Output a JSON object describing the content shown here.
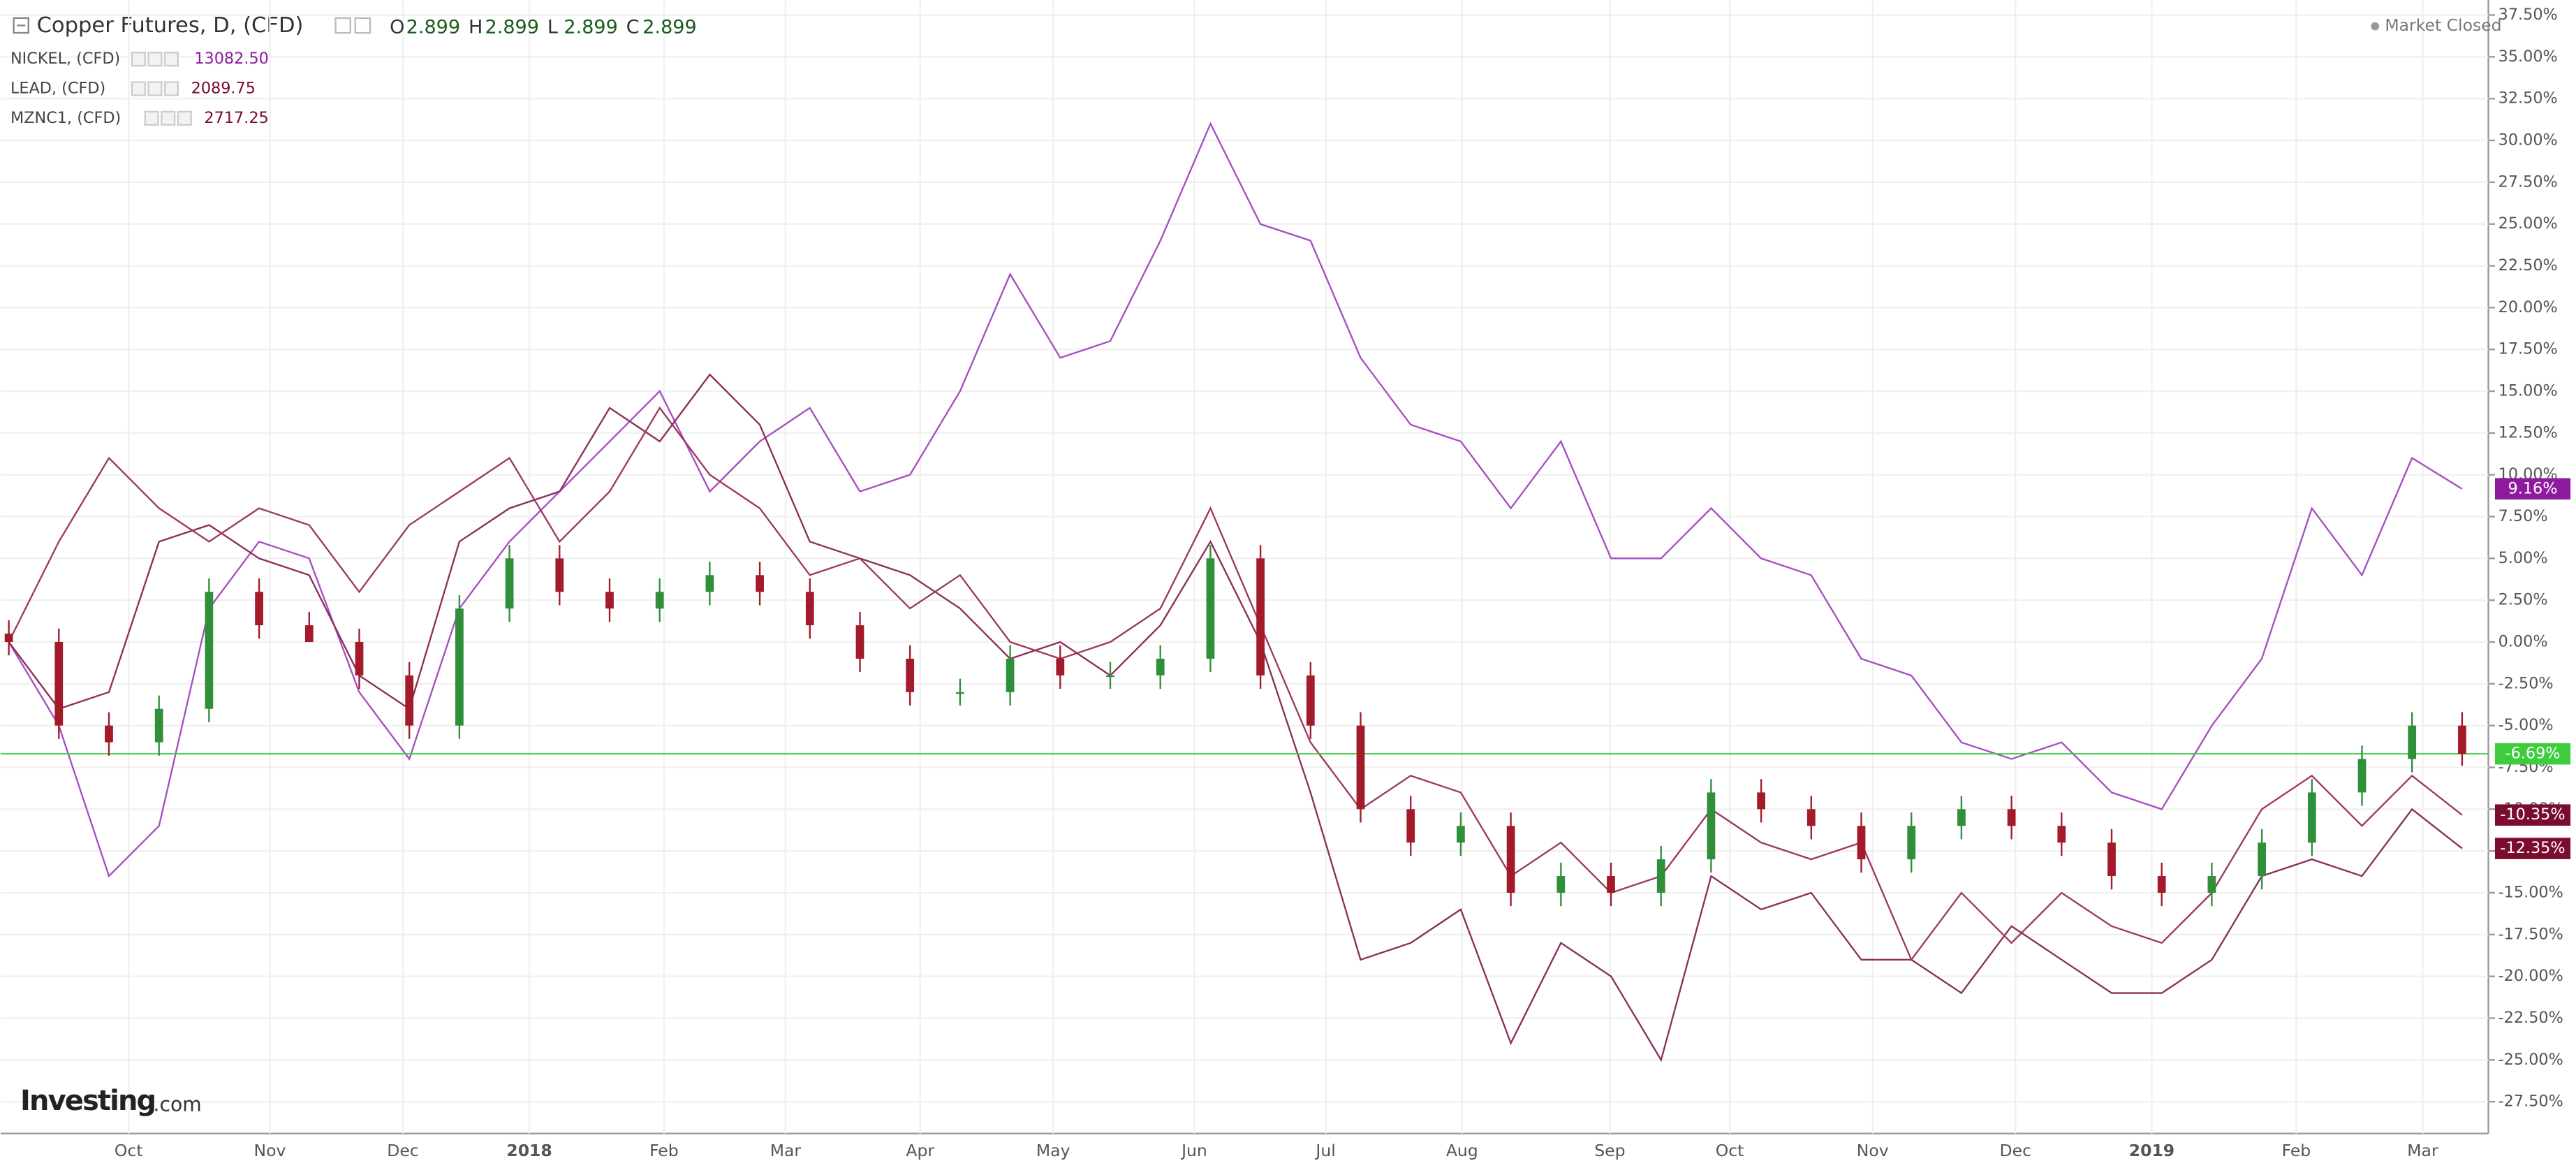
{
  "header": {
    "title": "Copper Futures, D, (CFD)",
    "ohlc": [
      {
        "label": "O",
        "value": "2.899"
      },
      {
        "label": "H",
        "value": "2.899"
      },
      {
        "label": "L",
        "value": "2.899"
      },
      {
        "label": "C",
        "value": "2.899"
      }
    ],
    "market_status": "Market Closed",
    "logo": "Investing",
    "logo_suffix": ".com"
  },
  "chart_data": {
    "type": "candlestick",
    "xticks": [
      "Oct",
      "Nov",
      "Dec",
      "2018",
      "Feb",
      "Mar",
      "Apr",
      "May",
      "Jun",
      "Jul",
      "Aug",
      "Sep",
      "Oct",
      "Nov",
      "Dec",
      "2019",
      "Feb",
      "Mar"
    ],
    "ylim": [
      -29.4,
      38.4
    ],
    "yticks": [
      {
        "value": -27.5,
        "label": "-27.50%"
      },
      {
        "value": -25,
        "label": "-25.00%"
      },
      {
        "value": -22.5,
        "label": "-22.50%"
      },
      {
        "value": -20,
        "label": "-20.00%"
      },
      {
        "value": -17.5,
        "label": "-17.50%"
      },
      {
        "value": -15,
        "label": "-15.00%"
      },
      {
        "value": -12.5,
        "label": "-12.50%"
      },
      {
        "value": -10,
        "label": "-10.00%"
      },
      {
        "value": -7.5,
        "label": "-7.50%"
      },
      {
        "value": -5,
        "label": "-5.00%"
      },
      {
        "value": -2.5,
        "label": "-2.50%"
      },
      {
        "value": 0,
        "label": "0.00%"
      },
      {
        "value": 2.5,
        "label": "2.50%"
      },
      {
        "value": 5,
        "label": "5.00%"
      },
      {
        "value": 7.5,
        "label": "7.50%"
      },
      {
        "value": 10,
        "label": "10.00%"
      },
      {
        "value": 12.5,
        "label": "12.50%"
      },
      {
        "value": 15,
        "label": "15.00%"
      },
      {
        "value": 17.5,
        "label": "17.50%"
      },
      {
        "value": 20,
        "label": "20.00%"
      },
      {
        "value": 22.5,
        "label": "22.50%"
      },
      {
        "value": 25,
        "label": "25.00%"
      },
      {
        "value": 27.5,
        "label": "27.50%"
      },
      {
        "value": 30,
        "label": "30.00%"
      },
      {
        "value": 32.5,
        "label": "32.50%"
      },
      {
        "value": 35,
        "label": "35.00%"
      },
      {
        "value": 37.5,
        "label": "37.50%"
      }
    ],
    "candles": {
      "up_color": "#2f8f3a",
      "down_color": "#a31b2a",
      "open": [
        0.5,
        0,
        -5,
        -6,
        -4,
        3,
        1,
        0,
        -2,
        -5,
        2,
        5,
        3,
        2,
        3,
        4,
        3,
        1,
        -1,
        -3,
        -3,
        -1,
        -2,
        -2,
        -1,
        5,
        -2,
        -5,
        -10,
        -12,
        -11,
        -15,
        -14,
        -15,
        -13,
        -9,
        -10,
        -11,
        -13,
        -11,
        -10,
        -11,
        -12,
        -14,
        -15,
        -14,
        -12,
        -9,
        -7,
        -5
      ],
      "close": [
        0,
        -5,
        -6,
        -4,
        3,
        1,
        0,
        -2,
        -5,
        2,
        5,
        3,
        2,
        3,
        4,
        3,
        1,
        -1,
        -3,
        -3,
        -1,
        -2,
        -2,
        -1,
        5,
        -2,
        -5,
        -10,
        -12,
        -11,
        -15,
        -14,
        -15,
        -13,
        -9,
        -10,
        -11,
        -13,
        -11,
        -10,
        -11,
        -12,
        -14,
        -15,
        -14,
        -12,
        -9,
        -7,
        -5,
        -6.69
      ],
      "high": [
        1.3,
        0.8,
        -4.2,
        -3.2,
        3.8,
        3.8,
        1.8,
        0.8,
        -1.2,
        2.8,
        5.8,
        5.8,
        3.8,
        3.8,
        4.8,
        4.8,
        3.8,
        1.8,
        -0.2,
        -2.2,
        -0.2,
        -0.2,
        -1.2,
        -0.2,
        5.8,
        5.8,
        -1.2,
        -4.2,
        -9.2,
        -10.2,
        -10.2,
        -13.2,
        -13.2,
        -12.2,
        -8.2,
        -8.2,
        -9.2,
        -10.2,
        -10.2,
        -9.2,
        -9.2,
        -10.2,
        -11.2,
        -13.2,
        -13.2,
        -11.2,
        -8.2,
        -6.2,
        -4.2,
        -4.2
      ],
      "low": [
        -0.8,
        -5.8,
        -6.8,
        -6.8,
        -4.8,
        0.2,
        0.2,
        -2.8,
        -5.8,
        -5.8,
        1.2,
        2.2,
        1.2,
        1.2,
        2.2,
        2.2,
        0.2,
        -1.8,
        -3.8,
        -3.8,
        -3.8,
        -2.8,
        -2.8,
        -2.8,
        -1.8,
        -2.8,
        -5.8,
        -10.8,
        -12.8,
        -12.8,
        -15.8,
        -15.8,
        -15.8,
        -15.8,
        -13.8,
        -10.8,
        -11.8,
        -13.8,
        -13.8,
        -11.8,
        -11.8,
        -12.8,
        -14.8,
        -15.8,
        -15.8,
        -14.8,
        -12.8,
        -9.8,
        -7.8,
        -7.4
      ],
      "last_label": "-6.69%",
      "last_color": "#3ccc3c"
    },
    "series": [
      {
        "name": "NICKEL, (CFD)",
        "quote": "13082.50",
        "color": "#a64fc0",
        "last_label": "9.16%",
        "label_color": "#8e1a9e",
        "values": [
          0,
          -5,
          -14,
          -11,
          2,
          6,
          5,
          -3,
          -7,
          2,
          6,
          9,
          12,
          15,
          9,
          12,
          14,
          9,
          10,
          15,
          22,
          17,
          18,
          24,
          31,
          25,
          24,
          17,
          13,
          12,
          8,
          12,
          5,
          5,
          8,
          5,
          4,
          -1,
          -2,
          -6,
          -7,
          -6,
          -9,
          -10,
          -5,
          -1,
          8,
          4,
          11,
          9.16
        ]
      },
      {
        "name": "LEAD, (CFD)",
        "quote": "2089.75",
        "color": "#8a2f5e",
        "last_label": "-12.35%",
        "label_color": "#7a0c2e",
        "values": [
          0,
          -4,
          -3,
          6,
          7,
          5,
          4,
          -2,
          -4,
          6,
          8,
          9,
          14,
          12,
          16,
          13,
          6,
          5,
          4,
          2,
          -1,
          0,
          -2,
          1,
          6,
          0,
          -9,
          -19,
          -18,
          -16,
          -24,
          -18,
          -20,
          -25,
          -14,
          -16,
          -15,
          -19,
          -19,
          -21,
          -17,
          -19,
          -21,
          -21,
          -19,
          -14,
          -13,
          -14,
          -10,
          -12.35
        ]
      },
      {
        "name": "MZNC1, (CFD)",
        "quote": "2717.25",
        "color": "#9c3a5c",
        "last_label": "-10.35%",
        "label_color": "#7a0c2e",
        "values": [
          0,
          6,
          11,
          8,
          6,
          8,
          7,
          3,
          7,
          9,
          11,
          6,
          9,
          14,
          10,
          8,
          4,
          5,
          2,
          4,
          0,
          -1,
          0,
          2,
          8,
          1,
          -6,
          -10,
          -8,
          -9,
          -14,
          -12,
          -15,
          -14,
          -10,
          -12,
          -13,
          -12,
          -19,
          -15,
          -18,
          -15,
          -17,
          -18,
          -15,
          -10,
          -8,
          -11,
          -8,
          -10.35
        ]
      }
    ]
  }
}
